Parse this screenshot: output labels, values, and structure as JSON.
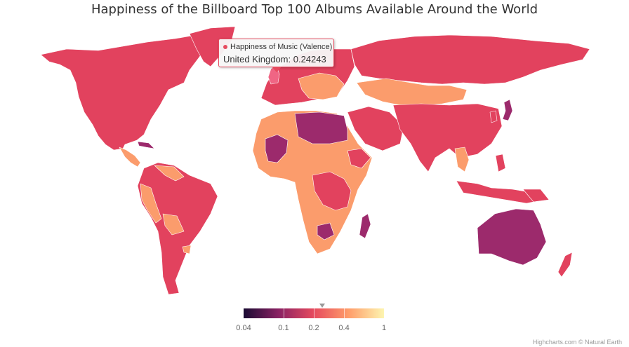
{
  "title": "Happiness of the Billboard Top 100 Albums Available Around the World",
  "tooltip": {
    "series_name": "Happiness of Music (Valence)",
    "country": "United Kingdom",
    "value": "0.24243",
    "text": "United Kingdom: 0.24243"
  },
  "color_axis": {
    "scale": "log",
    "min": 0.04,
    "max": 1,
    "tick_labels": [
      "0.04",
      "0.1",
      "0.2",
      "0.4",
      "1"
    ],
    "ticks": [
      0.04,
      0.1,
      0.2,
      0.4,
      1
    ],
    "stops": [
      "#1a0b33",
      "#8a2163",
      "#e64a5e",
      "#ff9e6b",
      "#fdf5b0"
    ],
    "marker_value": 0.24243
  },
  "regions": [
    {
      "name": "United Kingdom",
      "value": 0.24243,
      "color": "#f06584"
    },
    {
      "name": "Libya",
      "value": 0.13,
      "color": "#9c2a6c"
    },
    {
      "name": "Egypt",
      "value": 0.13,
      "color": "#9c2a6c"
    },
    {
      "name": "Mali",
      "value": 0.13,
      "color": "#9c2a6c"
    },
    {
      "name": "Australia",
      "value": 0.13,
      "color": "#9c2a6c"
    },
    {
      "name": "Madagascar",
      "value": 0.13,
      "color": "#9c2a6c"
    },
    {
      "name": "Zimbabwe",
      "value": 0.13,
      "color": "#9c2a6c"
    },
    {
      "name": "Japan",
      "value": 0.13,
      "color": "#9c2a6c"
    },
    {
      "name": "Africa (most)",
      "value": 0.45,
      "color": "#fb9c6c"
    },
    {
      "name": "Kazakhstan / Mongolia",
      "value": 0.45,
      "color": "#fb9c6c"
    },
    {
      "name": "Rest of world",
      "value": 0.22,
      "color": "#e2425e"
    }
  ],
  "credits": "Highcharts.com © Natural Earth"
}
